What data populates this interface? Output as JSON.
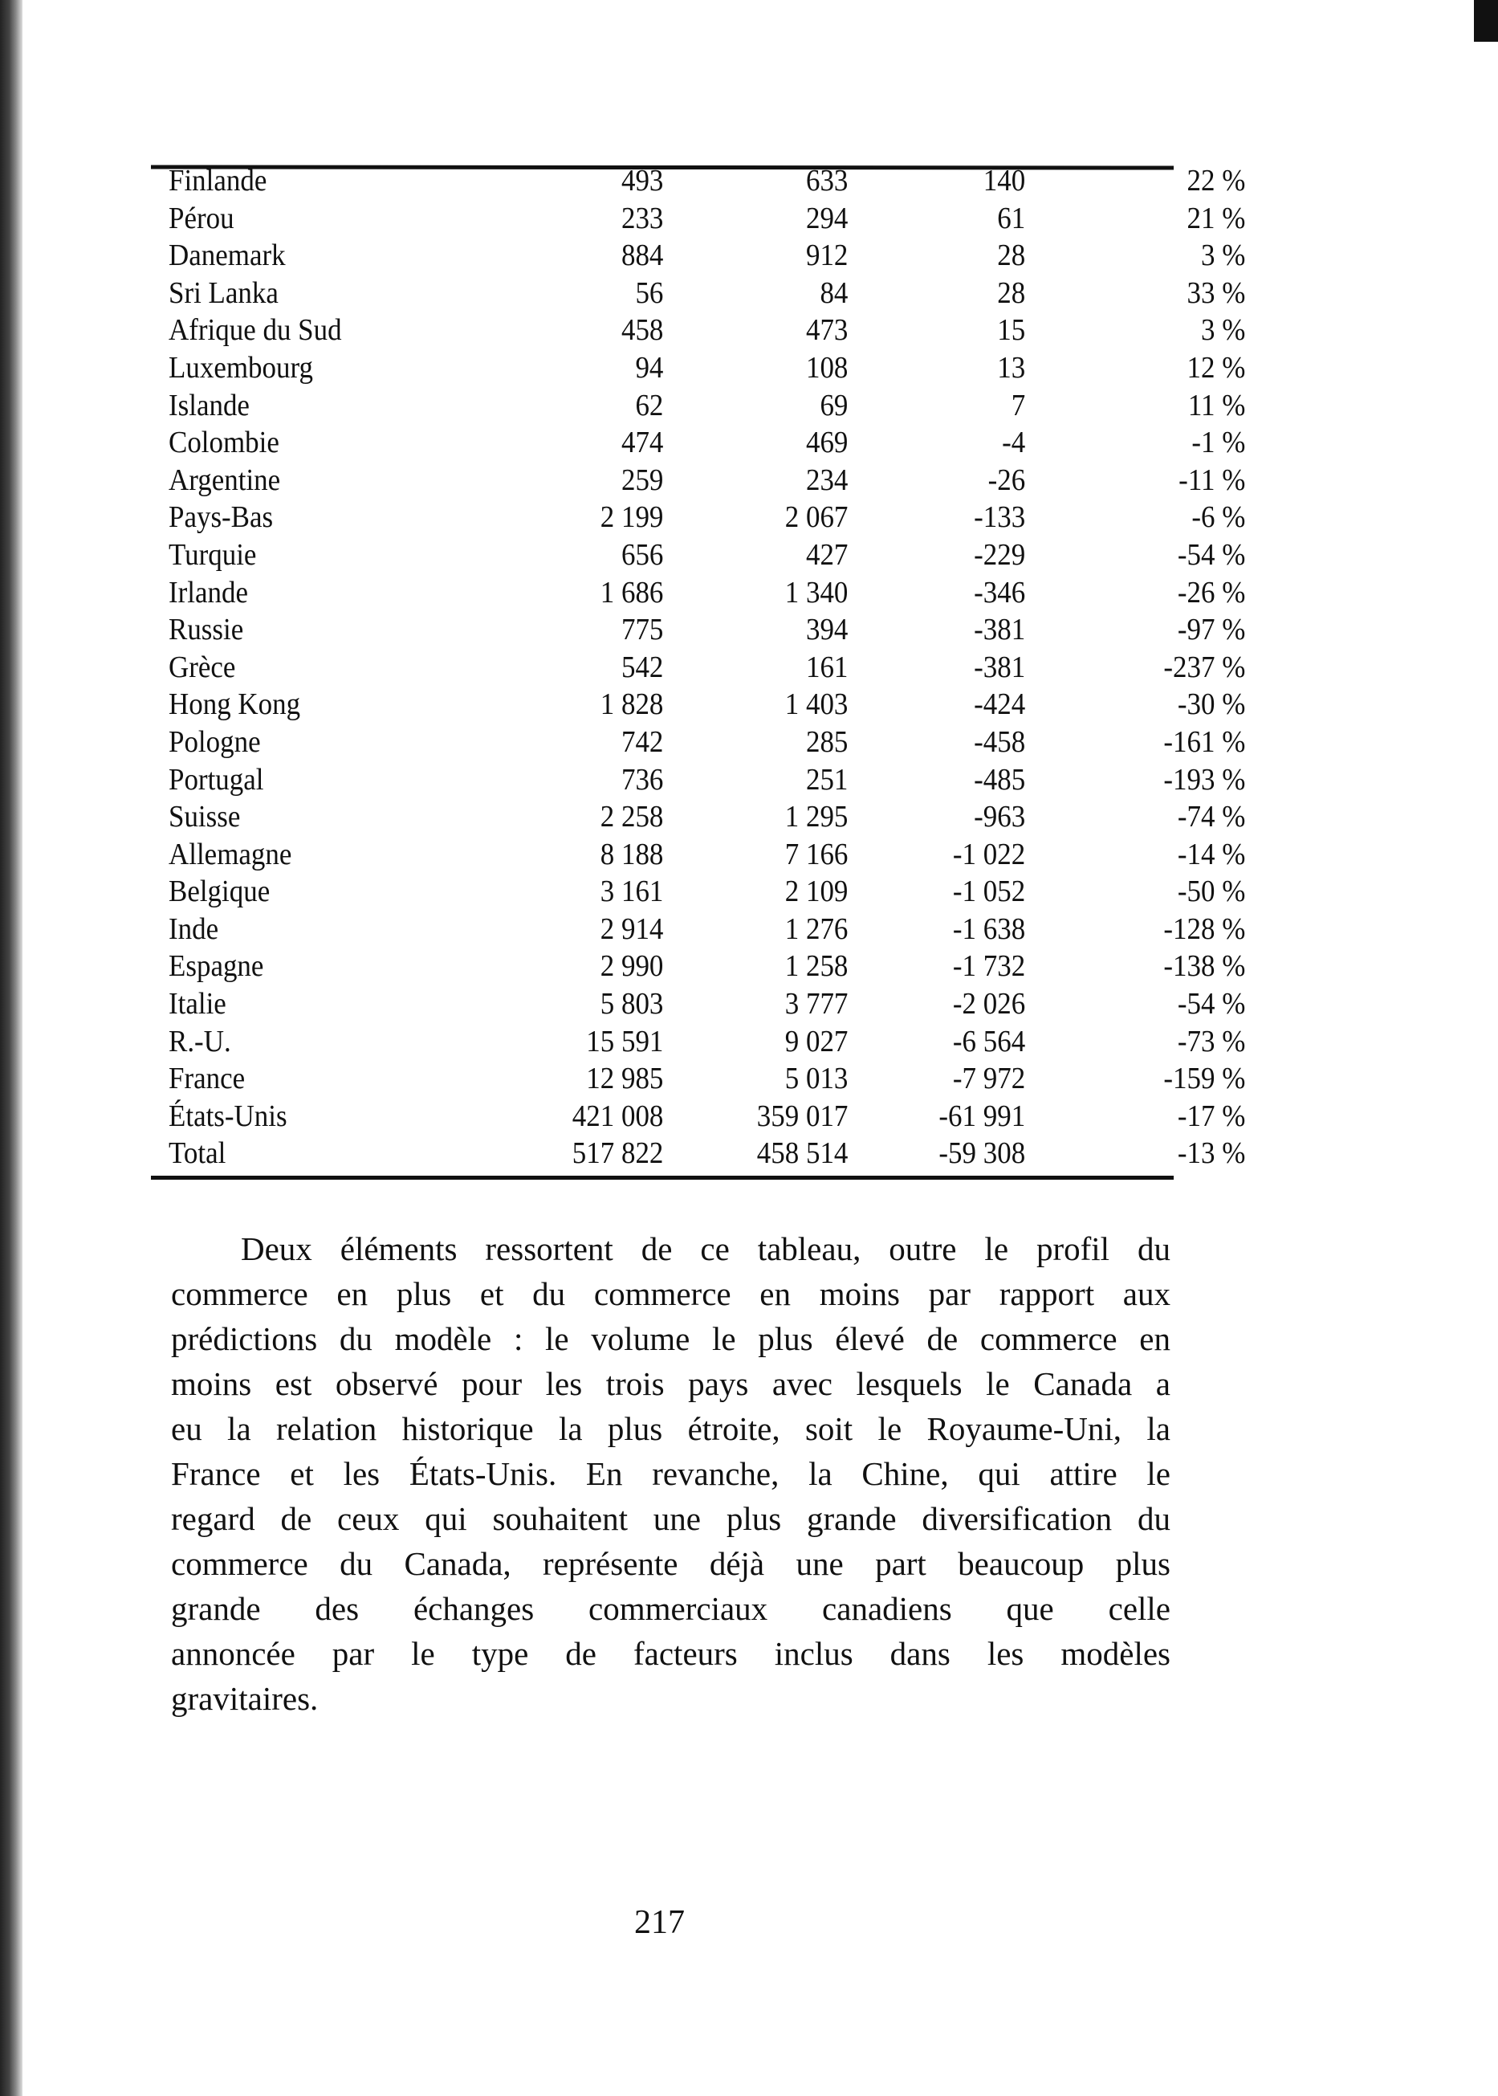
{
  "table": {
    "rows": [
      [
        "Finlande",
        "493",
        "633",
        "140",
        "22 %"
      ],
      [
        "Pérou",
        "233",
        "294",
        "61",
        "21 %"
      ],
      [
        "Danemark",
        "884",
        "912",
        "28",
        "3 %"
      ],
      [
        "Sri Lanka",
        "56",
        "84",
        "28",
        "33 %"
      ],
      [
        "Afrique du Sud",
        "458",
        "473",
        "15",
        "3 %"
      ],
      [
        "Luxembourg",
        "94",
        "108",
        "13",
        "12 %"
      ],
      [
        "Islande",
        "62",
        "69",
        "7",
        "11 %"
      ],
      [
        "Colombie",
        "474",
        "469",
        "-4",
        "-1 %"
      ],
      [
        "Argentine",
        "259",
        "234",
        "-26",
        "-11 %"
      ],
      [
        "Pays-Bas",
        "2 199",
        "2 067",
        "-133",
        "-6 %"
      ],
      [
        "Turquie",
        "656",
        "427",
        "-229",
        "-54 %"
      ],
      [
        "Irlande",
        "1 686",
        "1 340",
        "-346",
        "-26 %"
      ],
      [
        "Russie",
        "775",
        "394",
        "-381",
        "-97 %"
      ],
      [
        "Grèce",
        "542",
        "161",
        "-381",
        "-237 %"
      ],
      [
        "Hong Kong",
        "1 828",
        "1 403",
        "-424",
        "-30 %"
      ],
      [
        "Pologne",
        "742",
        "285",
        "-458",
        "-161 %"
      ],
      [
        "Portugal",
        "736",
        "251",
        "-485",
        "-193 %"
      ],
      [
        "Suisse",
        "2 258",
        "1 295",
        "-963",
        "-74 %"
      ],
      [
        "Allemagne",
        "8 188",
        "7 166",
        "-1 022",
        "-14 %"
      ],
      [
        "Belgique",
        "3 161",
        "2 109",
        "-1 052",
        "-50 %"
      ],
      [
        "Inde",
        "2 914",
        "1 276",
        "-1 638",
        "-128 %"
      ],
      [
        "Espagne",
        "2 990",
        "1 258",
        "-1 732",
        "-138 %"
      ],
      [
        "Italie",
        "5 803",
        "3 777",
        "-2 026",
        "-54 %"
      ],
      [
        "R.-U.",
        "15 591",
        "9 027",
        "-6 564",
        "-73 %"
      ],
      [
        "France",
        "12 985",
        "5 013",
        "-7 972",
        "-159 %"
      ],
      [
        "États-Unis",
        "421 008",
        "359 017",
        "-61 991",
        "-17 %"
      ],
      [
        "Total",
        "517 822",
        "458 514",
        "-59 308",
        "-13 %"
      ]
    ]
  },
  "paragraph": {
    "lines": [
      "Deux éléments ressortent de ce tableau, outre le profil du",
      "commerce en plus et du commerce en moins par rapport aux",
      "prédictions du modèle : le volume le plus élevé de commerce en",
      "moins est observé pour les trois pays avec lesquels le Canada a",
      "eu la relation historique la plus étroite, soit le Royaume-Uni, la",
      "France et les États-Unis. En revanche, la Chine, qui attire le",
      "regard de ceux qui souhaitent une plus grande diversification du",
      "commerce du Canada, représente déjà une part beaucoup plus",
      "grande des échanges commerciaux canadiens que celle",
      "annoncée par le type de facteurs inclus dans les modèles",
      "gravitaires."
    ]
  },
  "page_number": "217"
}
